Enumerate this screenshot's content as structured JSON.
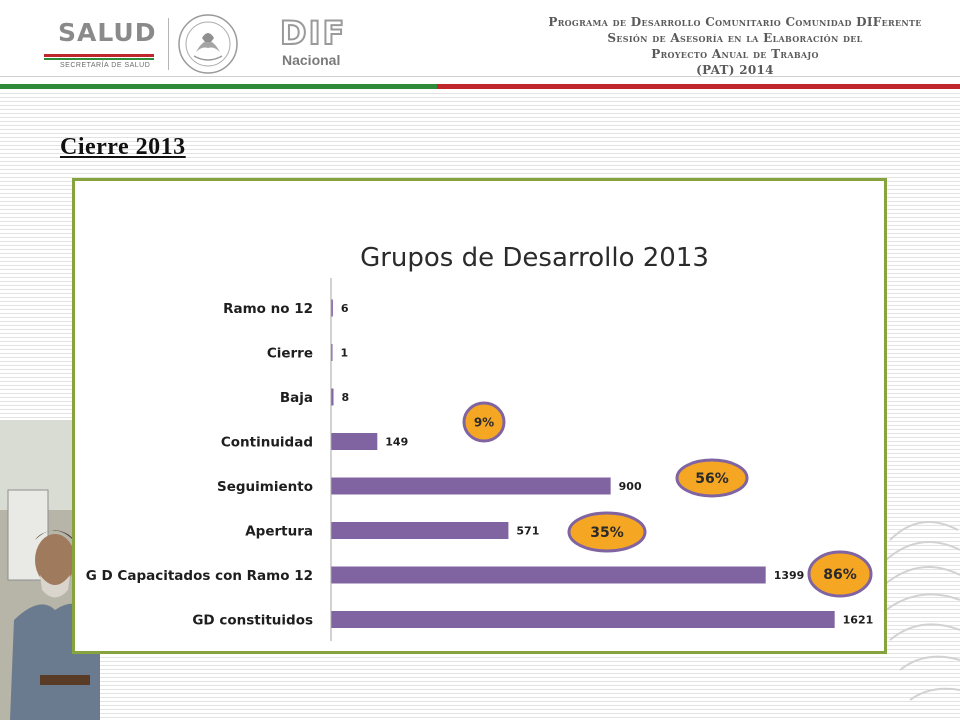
{
  "header": {
    "salud_word": "SALUD",
    "salud_sub": "SECRETARÍA DE SALUD",
    "dif_word": "DIF",
    "dif_sub": "Nacional",
    "program_lines": [
      "Programa de Desarrollo Comunitario Comunidad DIFerente",
      "Sesión de Asesoría en la Elaboración del",
      "Proyecto Anual de Trabajo",
      "(PAT) 2014"
    ]
  },
  "section_title": "Cierre 2013",
  "colors": {
    "bar": "#8064a2",
    "badge_fill": "#f5a623",
    "badge_stroke": "#8064a2",
    "chart_border": "#86a33e",
    "green": "#2e8b3a",
    "red": "#c0272d"
  },
  "chart_data": {
    "type": "bar",
    "orientation": "horizontal",
    "title": "Grupos de Desarrollo  2013",
    "categories": [
      "Ramo no 12",
      "Cierre",
      "Baja",
      "Continuidad",
      "Seguimiento",
      "Apertura",
      "G D Capacitados con Ramo 12",
      "GD constituidos"
    ],
    "values": [
      6,
      1,
      8,
      149,
      900,
      571,
      1399,
      1621
    ],
    "xlim": [
      0,
      1680
    ],
    "grid": false,
    "legend": "none",
    "annotations": [
      {
        "text": "9%",
        "category": "Continuidad"
      },
      {
        "text": "56%",
        "category": "Seguimiento"
      },
      {
        "text": "35%",
        "category": "Apertura"
      },
      {
        "text": "86%",
        "category": "G D Capacitados con Ramo 12"
      }
    ]
  }
}
